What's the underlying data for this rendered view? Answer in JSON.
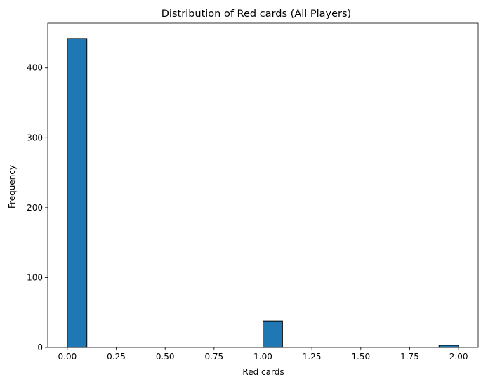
{
  "chart_data": {
    "type": "bar",
    "title": "Distribution of Red cards (All Players)",
    "xlabel": "Red cards",
    "ylabel": "Frequency",
    "xlim": [
      -0.1,
      2.1
    ],
    "ylim": [
      0,
      464
    ],
    "bin_width": 0.1,
    "bins": [
      {
        "x0": 0.0,
        "x1": 0.1,
        "count": 442
      },
      {
        "x0": 0.1,
        "x1": 0.2,
        "count": 0
      },
      {
        "x0": 0.2,
        "x1": 0.3,
        "count": 0
      },
      {
        "x0": 0.3,
        "x1": 0.4,
        "count": 0
      },
      {
        "x0": 0.4,
        "x1": 0.5,
        "count": 0
      },
      {
        "x0": 0.5,
        "x1": 0.6,
        "count": 0
      },
      {
        "x0": 0.6,
        "x1": 0.7,
        "count": 0
      },
      {
        "x0": 0.7,
        "x1": 0.8,
        "count": 0
      },
      {
        "x0": 0.8,
        "x1": 0.9,
        "count": 0
      },
      {
        "x0": 0.9,
        "x1": 1.0,
        "count": 0
      },
      {
        "x0": 1.0,
        "x1": 1.1,
        "count": 38
      },
      {
        "x0": 1.1,
        "x1": 1.2,
        "count": 0
      },
      {
        "x0": 1.2,
        "x1": 1.3,
        "count": 0
      },
      {
        "x0": 1.3,
        "x1": 1.4,
        "count": 0
      },
      {
        "x0": 1.4,
        "x1": 1.5,
        "count": 0
      },
      {
        "x0": 1.5,
        "x1": 1.6,
        "count": 0
      },
      {
        "x0": 1.6,
        "x1": 1.7,
        "count": 0
      },
      {
        "x0": 1.7,
        "x1": 1.8,
        "count": 0
      },
      {
        "x0": 1.8,
        "x1": 1.9,
        "count": 0
      },
      {
        "x0": 1.9,
        "x1": 2.0,
        "count": 3
      }
    ],
    "xticks": [
      0.0,
      0.25,
      0.5,
      0.75,
      1.0,
      1.25,
      1.5,
      1.75,
      2.0
    ],
    "xtick_labels": [
      "0.00",
      "0.25",
      "0.50",
      "0.75",
      "1.00",
      "1.25",
      "1.50",
      "1.75",
      "2.00"
    ],
    "yticks": [
      0,
      100,
      200,
      300,
      400
    ],
    "ytick_labels": [
      "0",
      "100",
      "200",
      "300",
      "400"
    ],
    "grid": false,
    "legend": "none",
    "bar_color": "#1f77b4",
    "edge_color": "#000000"
  }
}
